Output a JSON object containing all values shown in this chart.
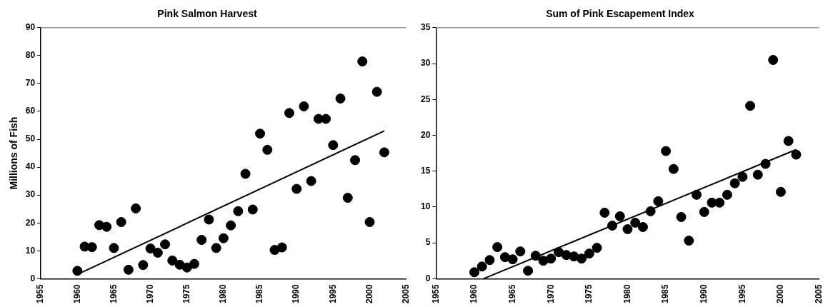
{
  "chart_data": [
    {
      "type": "scatter",
      "title": "Pink Salmon Harvest",
      "ylabel": "Millions of Fish",
      "xlim": [
        1955,
        2005
      ],
      "xticks": [
        1955,
        1960,
        1965,
        1970,
        1975,
        1980,
        1985,
        1990,
        1995,
        2000,
        2005
      ],
      "ylim": [
        0,
        90
      ],
      "yticks": [
        0,
        10,
        20,
        30,
        40,
        50,
        60,
        70,
        80,
        90
      ],
      "grid": false,
      "legend": false,
      "series": [
        {
          "color": "#000000",
          "marker": "circle",
          "x": [
            1960,
            1961,
            1962,
            1963,
            1964,
            1965,
            1966,
            1967,
            1968,
            1969,
            1970,
            1971,
            1972,
            1973,
            1974,
            1975,
            1976,
            1977,
            1978,
            1979,
            1980,
            1981,
            1982,
            1983,
            1984,
            1985,
            1986,
            1987,
            1988,
            1989,
            1990,
            1991,
            1992,
            1993,
            1994,
            1995,
            1996,
            1997,
            1998,
            1999,
            2000,
            2001,
            2002
          ],
          "values": [
            2.8,
            11.5,
            11.3,
            19.2,
            18.6,
            11,
            20.3,
            3.2,
            25.2,
            4.9,
            10.8,
            9.3,
            12.3,
            6.5,
            5,
            4,
            5.3,
            13.9,
            21.2,
            11,
            14.5,
            19.1,
            24.2,
            37.6,
            24.8,
            52,
            46.2,
            10.3,
            11.2,
            59.4,
            32.2,
            61.8,
            35,
            57.3,
            57.3,
            47.9,
            64.6,
            29,
            42.5,
            77.9,
            20.3,
            67,
            45.3
          ]
        },
        {
          "type": "line",
          "color": "#000000",
          "x": [
            1960,
            2002
          ],
          "values": [
            1.5,
            53
          ]
        }
      ]
    },
    {
      "type": "scatter",
      "title": "Sum of Pink Escapement Index",
      "xlim": [
        1955,
        2005
      ],
      "xticks": [
        1955,
        1960,
        1965,
        1970,
        1975,
        1980,
        1985,
        1990,
        1995,
        2000,
        2005
      ],
      "ylim": [
        0,
        35
      ],
      "yticks": [
        0,
        5,
        10,
        15,
        20,
        25,
        30,
        35
      ],
      "grid": false,
      "legend": false,
      "series": [
        {
          "color": "#000000",
          "marker": "circle",
          "x": [
            1960,
            1961,
            1962,
            1963,
            1964,
            1965,
            1966,
            1967,
            1968,
            1969,
            1970,
            1971,
            1972,
            1973,
            1974,
            1975,
            1976,
            1977,
            1978,
            1979,
            1980,
            1981,
            1982,
            1983,
            1984,
            1985,
            1986,
            1987,
            1988,
            1989,
            1990,
            1991,
            1992,
            1993,
            1994,
            1995,
            1996,
            1997,
            1998,
            1999,
            2000,
            2001,
            2002
          ],
          "values": [
            0.9,
            1.7,
            2.6,
            4.4,
            3,
            2.7,
            3.8,
            1.1,
            3.2,
            2.5,
            2.8,
            3.7,
            3.3,
            3.1,
            2.8,
            3.5,
            4.3,
            9.2,
            7.4,
            8.7,
            6.9,
            7.8,
            7.2,
            9.4,
            10.8,
            17.8,
            15.3,
            8.6,
            5.3,
            11.7,
            9.3,
            10.6,
            10.6,
            11.7,
            13.3,
            14.2,
            24.1,
            14.5,
            16,
            30.5,
            12.1,
            19.2,
            17.3
          ]
        },
        {
          "type": "line",
          "color": "#000000",
          "x": [
            1961.2,
            2002
          ],
          "values": [
            0,
            18
          ]
        }
      ]
    }
  ]
}
